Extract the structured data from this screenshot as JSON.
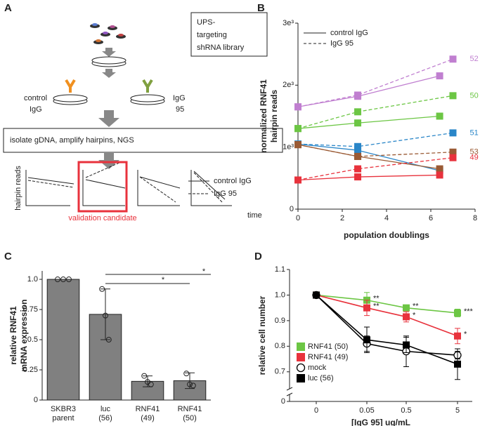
{
  "diagram": {
    "label": "A",
    "library": [
      "UPS-",
      "targeting",
      "shRNA library"
    ],
    "control_dish": [
      "control",
      "IgG"
    ],
    "igg_dish": [
      "IgG",
      "95"
    ],
    "step": "isolate gDNA, amplify hairpins, NGS",
    "yaxis": "hairpin reads",
    "xaxis": "time",
    "legend": [
      "control IgG",
      "IgG 95"
    ],
    "highlight": "validation candidate"
  },
  "chart_data": [
    {
      "type": "line",
      "label": "B",
      "xlabel": "population doublings",
      "ylabel": [
        "normalized RNF41",
        "hairpin reads"
      ],
      "xlim": [
        0,
        8
      ],
      "xticks": [
        0,
        2,
        4,
        6,
        8
      ],
      "ylim": [
        0,
        3000
      ],
      "yticks": [
        0,
        {
          "value": 1000,
          "label": "1e³"
        },
        {
          "value": 2000,
          "label": "2e³"
        },
        {
          "value": 3000,
          "label": "3e³"
        }
      ],
      "legend_position": "top-left",
      "line_styles": [
        {
          "name": "control IgG",
          "dashed": false
        },
        {
          "name": "IgG 95",
          "dashed": true
        }
      ],
      "x_control": [
        0,
        2.7,
        6.4
      ],
      "x_igg95": [
        0,
        2.7,
        7.0
      ],
      "series": [
        {
          "name": "52",
          "color": "#c07fd0",
          "values": [
            1650,
            1820,
            2150
          ],
          "values_igg95": [
            1650,
            1840,
            2420
          ]
        },
        {
          "name": "50",
          "color": "#6cc644",
          "values": [
            1300,
            1390,
            1500
          ],
          "values_igg95": [
            1300,
            1570,
            1830
          ]
        },
        {
          "name": "51",
          "color": "#2a86c8",
          "values": [
            1050,
            950,
            620
          ],
          "values_igg95": [
            1050,
            1010,
            1230
          ]
        },
        {
          "name": "53",
          "color": "#9a5a34",
          "values": [
            1040,
            850,
            650
          ],
          "values_igg95": [
            1040,
            850,
            920
          ]
        },
        {
          "name": "49",
          "color": "#e8323c",
          "values": [
            470,
            520,
            550
          ],
          "values_igg95": [
            470,
            650,
            830
          ]
        }
      ]
    },
    {
      "type": "bar",
      "label": "C",
      "ylabel": [
        "relative RNF41",
        "mRNA expression"
      ],
      "categories": [
        [
          "SKBR3",
          "parent"
        ],
        [
          "luc",
          "(56)"
        ],
        [
          "RNF41",
          "(49)"
        ],
        [
          "RNF41",
          "(50)"
        ]
      ],
      "values": [
        1.0,
        0.71,
        0.155,
        0.16
      ],
      "errors": [
        0,
        0.21,
        0.045,
        0.065
      ],
      "points": [
        [
          1.0,
          1.0,
          1.0
        ],
        [
          0.92,
          0.7,
          0.5
        ],
        [
          0.2,
          0.15,
          0.13
        ],
        [
          0.22,
          0.13,
          0.12
        ]
      ],
      "color": "#808080",
      "ylim": [
        0,
        1.07
      ],
      "yticks": [
        0,
        0.25,
        0.5,
        0.75,
        {
          "value": 1.0,
          "label": "1.0"
        }
      ],
      "significance": [
        "*",
        "*"
      ]
    },
    {
      "type": "line",
      "label": "D",
      "xlabel": "[IgG 95] ug/mL",
      "ylabel": "relative cell number",
      "categories": [
        "0",
        "0.05",
        "0.5",
        "5"
      ],
      "ylim": [
        0,
        1.1
      ],
      "yticks": [
        0,
        0.7,
        0.8,
        0.9,
        {
          "value": 1.0,
          "label": "1.0"
        },
        1.1
      ],
      "legend_position": "bottom-left",
      "series": [
        {
          "name": "RNF41 (50)",
          "color": "#6cc644",
          "marker": "square",
          "values": [
            1.0,
            0.98,
            0.95,
            0.93
          ],
          "errors": [
            0.01,
            0.03,
            0.01,
            0.015
          ],
          "significance": [
            null,
            "**",
            "**",
            "***"
          ]
        },
        {
          "name": "RNF41 (49)",
          "color": "#e8323c",
          "marker": "square",
          "values": [
            1.0,
            0.95,
            0.915,
            0.84
          ],
          "errors": [
            0.01,
            0.03,
            0.02,
            0.03
          ],
          "significance": [
            null,
            "**",
            "*",
            "*"
          ]
        },
        {
          "name": "mock",
          "color": "#000000",
          "marker": "circle",
          "values": [
            1.0,
            0.81,
            0.78,
            0.765
          ],
          "errors": [
            0.01,
            0.03,
            0.06,
            0.015
          ]
        },
        {
          "name": "luc (56)",
          "color": "#000000",
          "marker": "square",
          "values": [
            1.0,
            0.825,
            0.805,
            0.73
          ],
          "errors": [
            0.01,
            0.05,
            0.03,
            0.06
          ]
        }
      ]
    }
  ]
}
